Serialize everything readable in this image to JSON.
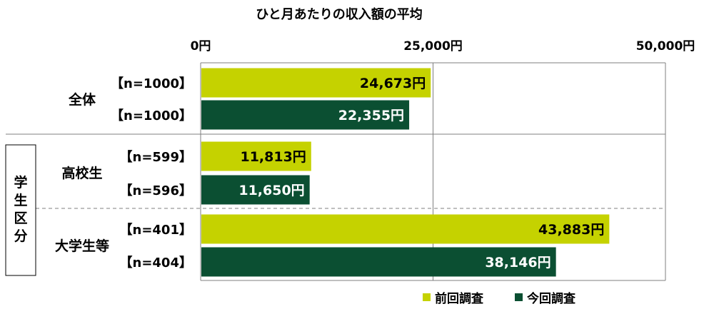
{
  "chart_data": {
    "type": "bar",
    "orientation": "horizontal",
    "title": "ひと月あたりの収入額の平均",
    "xlim": [
      0,
      50000
    ],
    "x_ticks": [
      "0円",
      "25,000円",
      "50,000円"
    ],
    "unit_suffix": "円",
    "group_header": "学生区分",
    "groups": [
      {
        "label": "全体",
        "rows": [
          {
            "n_label": "【n=1000】",
            "series": "前回調査",
            "value": 24673,
            "value_label": "24,673円"
          },
          {
            "n_label": "【n=1000】",
            "series": "今回調査",
            "value": 22355,
            "value_label": "22,355円"
          }
        ]
      },
      {
        "label": "高校生",
        "rows": [
          {
            "n_label": "【n=599】",
            "series": "前回調査",
            "value": 11813,
            "value_label": "11,813円"
          },
          {
            "n_label": "【n=596】",
            "series": "今回調査",
            "value": 11650,
            "value_label": "11,650円"
          }
        ]
      },
      {
        "label": "大学生等",
        "rows": [
          {
            "n_label": "【n=401】",
            "series": "前回調査",
            "value": 43883,
            "value_label": "43,883円"
          },
          {
            "n_label": "【n=404】",
            "series": "今回調査",
            "value": 38146,
            "value_label": "38,146円"
          }
        ]
      }
    ],
    "series": [
      {
        "name": "前回調査",
        "color": "#c5d200"
      },
      {
        "name": "今回調査",
        "color": "#0b4f32"
      }
    ],
    "legend": "bottom-right"
  }
}
